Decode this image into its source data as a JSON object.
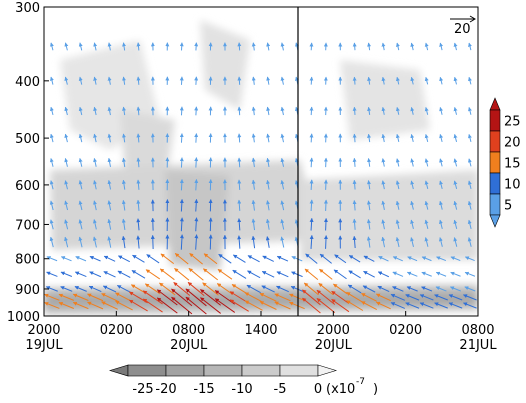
{
  "chart_data": {
    "type": "vector-contour",
    "description_free": true,
    "y_axis": {
      "scale": "log-pressure",
      "reversed": true,
      "range": [
        300,
        1000
      ],
      "ticks": [
        300,
        400,
        500,
        600,
        700,
        800,
        900,
        1000
      ]
    },
    "x_axis": {
      "ticks": [
        {
          "time": "2000",
          "date": "19JUL"
        },
        {
          "time": "0200",
          "date": ""
        },
        {
          "time": "0800",
          "date": "20JUL"
        },
        {
          "time": "1400",
          "date": ""
        },
        {
          "time": "2000",
          "date": "20JUL"
        },
        {
          "time": "0200",
          "date": ""
        },
        {
          "time": "0800",
          "date": "21JUL"
        }
      ],
      "divider_after_tick": 3
    },
    "reference_vector": {
      "label": "20",
      "magnitude": 20
    },
    "vector_colorbar": {
      "ticks": [
        "5",
        "10",
        "15",
        "20",
        "25"
      ],
      "colors": [
        "#5aa0e6",
        "#2f6fd6",
        "#f07f1e",
        "#e0401e",
        "#b41414"
      ]
    },
    "shading_colorbar": {
      "ticks": [
        "-25",
        "-20",
        "-15",
        "-10",
        "-5",
        "0"
      ],
      "unit": "(x10",
      "unit_exp": "-7",
      "unit_close": ")",
      "colors": [
        "#7a7a7a",
        "#8e8e8e",
        "#a2a2a2",
        "#b6b6b6",
        "#cbcbcb",
        "#e0e0e0",
        "#f2f2f2"
      ]
    },
    "series": [
      {
        "x_segment": "left",
        "peak_time_index": 0.58,
        "max_wind": 25
      },
      {
        "x_segment": "right",
        "peak_time_index": 0.08,
        "max_wind": 22
      }
    ]
  }
}
